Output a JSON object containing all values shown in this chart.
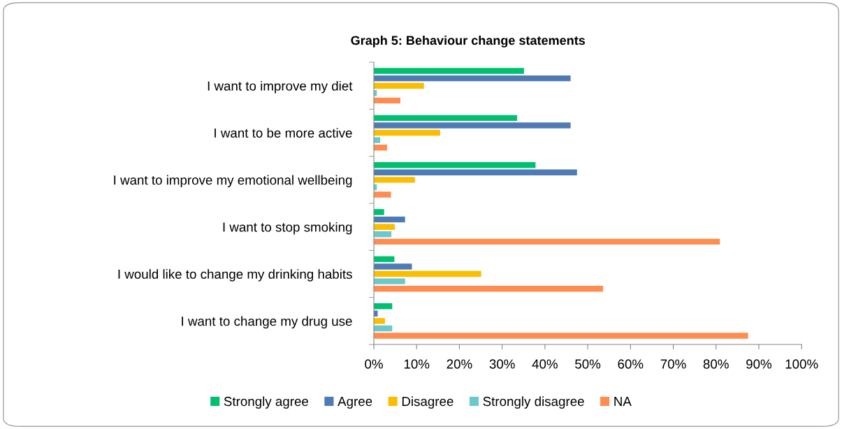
{
  "chart_data": {
    "type": "bar",
    "orientation": "horizontal",
    "title": "Graph 5: Behaviour change statements",
    "categories": [
      "I want to improve my diet",
      "I want to be more active",
      "I want to improve my emotional wellbeing",
      "I want to stop smoking",
      "I would like to change my drinking habits",
      "I want to change my drug use"
    ],
    "series": [
      {
        "name": "Strongly agree",
        "color": "#00bf6f",
        "values": [
          35.1,
          33.5,
          37.8,
          2.4,
          4.8,
          4.3
        ]
      },
      {
        "name": "Agree",
        "color": "#4f7bb5",
        "values": [
          46.0,
          46.0,
          47.5,
          7.3,
          8.9,
          0.9
        ]
      },
      {
        "name": "Disagree",
        "color": "#fabd00",
        "values": [
          11.7,
          15.5,
          9.6,
          4.9,
          25.1,
          2.6
        ]
      },
      {
        "name": "Strongly disagree",
        "color": "#6bc8cc",
        "values": [
          0.7,
          1.5,
          0.7,
          4.1,
          7.3,
          4.3
        ]
      },
      {
        "name": "NA",
        "color": "#ff8c50",
        "values": [
          6.2,
          3.1,
          4.0,
          80.9,
          53.6,
          87.5
        ]
      }
    ],
    "xlim": [
      0,
      100
    ],
    "xticks": [
      {
        "value": 0,
        "label": "0%"
      },
      {
        "value": 10,
        "label": "10%"
      },
      {
        "value": 20,
        "label": "20%"
      },
      {
        "value": 30,
        "label": "30%"
      },
      {
        "value": 40,
        "label": "40%"
      },
      {
        "value": 50,
        "label": "50%"
      },
      {
        "value": 60,
        "label": "60%"
      },
      {
        "value": 70,
        "label": "70%"
      },
      {
        "value": 80,
        "label": "80%"
      },
      {
        "value": 90,
        "label": "90%"
      },
      {
        "value": 100,
        "label": "100%"
      }
    ],
    "grid": false,
    "legend": "bottom"
  }
}
